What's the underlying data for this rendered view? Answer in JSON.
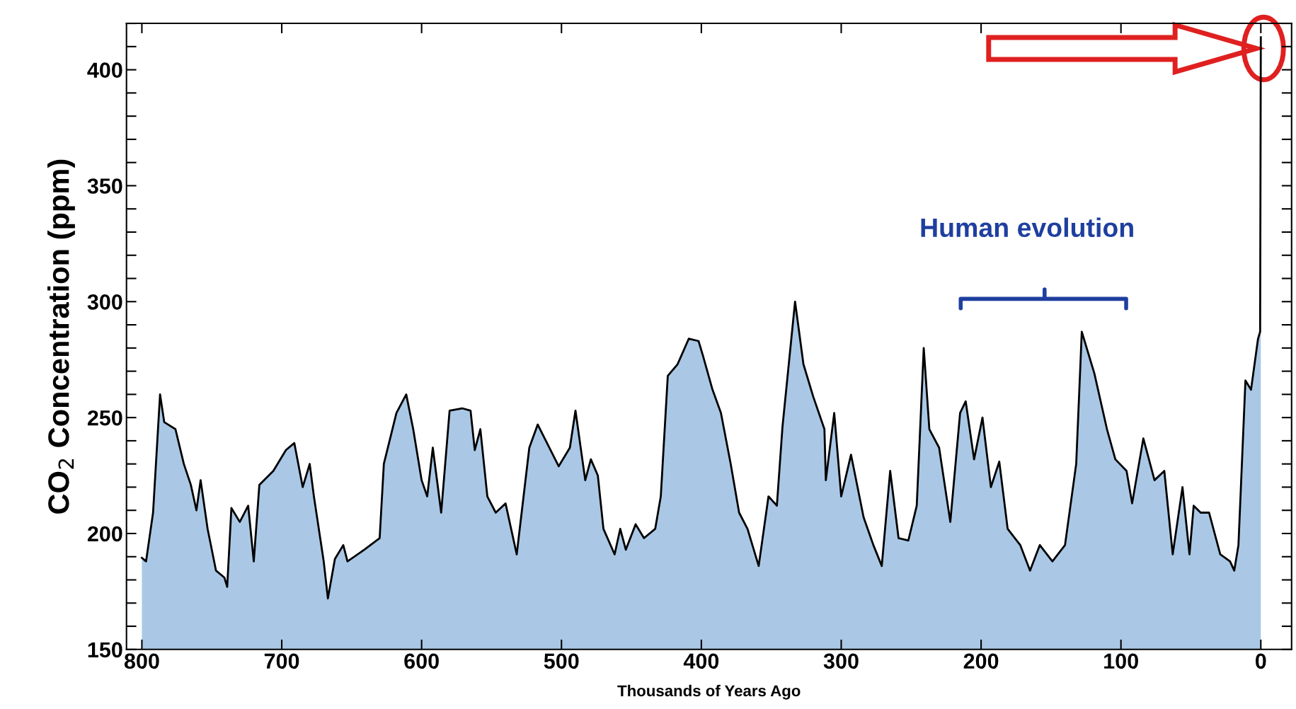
{
  "chart_data": {
    "type": "area",
    "xlabel": "Thousands of Years Ago",
    "ylabel": "CO$_{2}$ Concentration (ppm)",
    "xlim": [
      811,
      -22
    ],
    "ylim": [
      150,
      420
    ],
    "xticks": [
      800,
      700,
      600,
      500,
      400,
      300,
      200,
      100,
      0
    ],
    "yticks": [
      150,
      {
        "value": 160,
        "label": null
      },
      {
        "value": 170,
        "label": null
      },
      {
        "value": 180,
        "label": null
      },
      {
        "value": 190,
        "label": null
      },
      200,
      {
        "value": 210,
        "label": null
      },
      {
        "value": 220,
        "label": null
      },
      {
        "value": 230,
        "label": null
      },
      {
        "value": 240,
        "label": null
      },
      250,
      {
        "value": 260,
        "label": null
      },
      {
        "value": 270,
        "label": null
      },
      {
        "value": 280,
        "label": null
      },
      {
        "value": 290,
        "label": null
      },
      300,
      {
        "value": 310,
        "label": null
      },
      {
        "value": 320,
        "label": null
      },
      {
        "value": 330,
        "label": null
      },
      {
        "value": 340,
        "label": null
      },
      350,
      {
        "value": 360,
        "label": null
      },
      {
        "value": 370,
        "label": null
      },
      {
        "value": 380,
        "label": null
      },
      {
        "value": 390,
        "label": null
      },
      400,
      {
        "value": 410,
        "label": null
      },
      {
        "value": 420,
        "label": null
      }
    ],
    "grid": false,
    "annotations": [
      "Human evolution"
    ],
    "series": [
      {
        "color": "#aac8e6",
        "x": [
          800,
          797,
          792,
          787,
          784,
          776,
          770,
          765,
          761,
          758,
          753,
          747,
          741,
          739,
          736,
          730,
          724,
          720,
          716,
          706,
          697,
          691,
          685,
          680,
          677,
          670,
          667,
          662,
          656,
          653,
          641,
          630,
          627,
          618,
          611,
          606,
          600,
          596,
          592,
          586,
          580,
          571,
          565,
          562,
          558,
          553,
          547,
          540,
          532,
          523,
          517,
          512,
          502,
          494,
          490,
          483,
          479,
          474,
          470,
          462,
          458,
          454,
          447,
          441,
          433,
          429,
          424,
          417,
          409,
          402,
          399,
          392,
          386,
          379,
          373,
          367,
          359,
          352,
          346,
          342,
          333,
          327,
          320,
          312,
          311,
          305,
          300,
          293,
          284,
          277,
          271,
          265,
          259,
          252,
          246,
          241,
          237,
          230,
          222,
          215,
          211,
          205,
          199,
          193,
          187,
          181,
          172,
          165,
          158,
          149,
          140,
          132,
          128,
          119,
          110,
          104,
          96,
          92,
          84,
          76,
          69,
          63,
          56,
          51,
          48,
          43,
          37,
          29,
          22,
          19,
          16,
          11,
          7,
          2,
          0.5,
          0
        ],
        "values": [
          189.5,
          188,
          209,
          260,
          248,
          245,
          230,
          221,
          210,
          223,
          202,
          184,
          181,
          177,
          211,
          205,
          212,
          188,
          221,
          227,
          236,
          239,
          220,
          230,
          216,
          188,
          172,
          189,
          195,
          188,
          193,
          198,
          230,
          252,
          260,
          245,
          223,
          216,
          237,
          209,
          253,
          254,
          253,
          236,
          245,
          216,
          209,
          213,
          191,
          237,
          247,
          241,
          229,
          237,
          253,
          223,
          232,
          225,
          202,
          191,
          202,
          193,
          204,
          198,
          202,
          216,
          268,
          273,
          284,
          283,
          277,
          262,
          252,
          230,
          209,
          202,
          186,
          216,
          212,
          246,
          300,
          273,
          259,
          245,
          223,
          252,
          216,
          234,
          207,
          195,
          186,
          227,
          198,
          197,
          212,
          280,
          245,
          237,
          205,
          252,
          257,
          232,
          250,
          220,
          231,
          202,
          195,
          184,
          195,
          188,
          195,
          230,
          287,
          269,
          245,
          232,
          227,
          213,
          241,
          223,
          227,
          191,
          220,
          191,
          212,
          209,
          209,
          191,
          188,
          184,
          195,
          266,
          262,
          284,
          287,
          414
        ]
      }
    ]
  }
}
